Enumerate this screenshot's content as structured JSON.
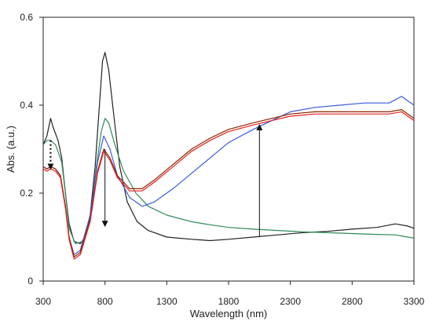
{
  "chart_data": {
    "type": "line",
    "title": "",
    "xlabel": "Wavelength (nm)",
    "ylabel": "Abs. (a.u.)",
    "xlim": [
      300,
      3300
    ],
    "ylim": [
      0,
      0.6
    ],
    "xticks": [
      300,
      800,
      1300,
      1800,
      2300,
      2800,
      3300
    ],
    "xtick_labels": [
      "300",
      "800",
      "1300",
      "1800",
      "2300",
      "2800",
      "3300"
    ],
    "yticks": [
      0,
      0.2,
      0.4,
      0.6
    ],
    "ytick_labels": [
      "0",
      "0.2",
      "0.4",
      "0.6"
    ],
    "grid": false,
    "legend": "none",
    "series": [
      {
        "color": "#222222",
        "points": [
          [
            300,
            0.31
          ],
          [
            330,
            0.33
          ],
          [
            360,
            0.37
          ],
          [
            380,
            0.35
          ],
          [
            420,
            0.32
          ],
          [
            450,
            0.28
          ],
          [
            480,
            0.2
          ],
          [
            510,
            0.13
          ],
          [
            550,
            0.09
          ],
          [
            600,
            0.085
          ],
          [
            640,
            0.1
          ],
          [
            680,
            0.15
          ],
          [
            720,
            0.26
          ],
          [
            750,
            0.38
          ],
          [
            780,
            0.5
          ],
          [
            800,
            0.52
          ],
          [
            830,
            0.48
          ],
          [
            870,
            0.38
          ],
          [
            920,
            0.26
          ],
          [
            980,
            0.18
          ],
          [
            1060,
            0.135
          ],
          [
            1150,
            0.115
          ],
          [
            1300,
            0.1
          ],
          [
            1500,
            0.095
          ],
          [
            1650,
            0.092
          ],
          [
            1800,
            0.095
          ],
          [
            2000,
            0.1
          ],
          [
            2200,
            0.105
          ],
          [
            2400,
            0.11
          ],
          [
            2600,
            0.113
          ],
          [
            2800,
            0.118
          ],
          [
            3000,
            0.122
          ],
          [
            3150,
            0.13
          ],
          [
            3250,
            0.125
          ],
          [
            3300,
            0.12
          ]
        ]
      },
      {
        "color": "#2e8b57",
        "points": [
          [
            300,
            0.31
          ],
          [
            330,
            0.32
          ],
          [
            360,
            0.32
          ],
          [
            400,
            0.31
          ],
          [
            450,
            0.27
          ],
          [
            480,
            0.2
          ],
          [
            510,
            0.12
          ],
          [
            560,
            0.085
          ],
          [
            620,
            0.09
          ],
          [
            680,
            0.14
          ],
          [
            730,
            0.26
          ],
          [
            770,
            0.34
          ],
          [
            800,
            0.37
          ],
          [
            830,
            0.36
          ],
          [
            880,
            0.31
          ],
          [
            950,
            0.25
          ],
          [
            1050,
            0.2
          ],
          [
            1150,
            0.17
          ],
          [
            1300,
            0.15
          ],
          [
            1500,
            0.135
          ],
          [
            1650,
            0.128
          ],
          [
            1800,
            0.122
          ],
          [
            2000,
            0.118
          ],
          [
            2200,
            0.115
          ],
          [
            2400,
            0.112
          ],
          [
            2600,
            0.11
          ],
          [
            2800,
            0.108
          ],
          [
            3000,
            0.106
          ],
          [
            3150,
            0.105
          ],
          [
            3250,
            0.1
          ],
          [
            3300,
            0.098
          ]
        ]
      },
      {
        "color": "#3b5bdb",
        "points": [
          [
            300,
            0.26
          ],
          [
            330,
            0.255
          ],
          [
            360,
            0.26
          ],
          [
            400,
            0.255
          ],
          [
            440,
            0.24
          ],
          [
            480,
            0.17
          ],
          [
            510,
            0.1
          ],
          [
            550,
            0.06
          ],
          [
            600,
            0.07
          ],
          [
            680,
            0.15
          ],
          [
            740,
            0.27
          ],
          [
            790,
            0.33
          ],
          [
            840,
            0.3
          ],
          [
            900,
            0.24
          ],
          [
            1000,
            0.19
          ],
          [
            1100,
            0.17
          ],
          [
            1200,
            0.18
          ],
          [
            1350,
            0.21
          ],
          [
            1500,
            0.245
          ],
          [
            1650,
            0.28
          ],
          [
            1800,
            0.315
          ],
          [
            2000,
            0.345
          ],
          [
            2150,
            0.365
          ],
          [
            2300,
            0.385
          ],
          [
            2500,
            0.395
          ],
          [
            2700,
            0.4
          ],
          [
            2900,
            0.405
          ],
          [
            3100,
            0.405
          ],
          [
            3200,
            0.42
          ],
          [
            3300,
            0.4
          ]
        ]
      },
      {
        "color": "#8b2500",
        "points": [
          [
            300,
            0.26
          ],
          [
            330,
            0.255
          ],
          [
            360,
            0.26
          ],
          [
            400,
            0.255
          ],
          [
            440,
            0.24
          ],
          [
            480,
            0.17
          ],
          [
            510,
            0.1
          ],
          [
            550,
            0.055
          ],
          [
            600,
            0.065
          ],
          [
            680,
            0.14
          ],
          [
            740,
            0.25
          ],
          [
            790,
            0.3
          ],
          [
            840,
            0.28
          ],
          [
            900,
            0.24
          ],
          [
            1000,
            0.21
          ],
          [
            1100,
            0.21
          ],
          [
            1200,
            0.23
          ],
          [
            1350,
            0.265
          ],
          [
            1500,
            0.3
          ],
          [
            1650,
            0.325
          ],
          [
            1800,
            0.345
          ],
          [
            2000,
            0.36
          ],
          [
            2150,
            0.37
          ],
          [
            2300,
            0.38
          ],
          [
            2500,
            0.385
          ],
          [
            2700,
            0.385
          ],
          [
            2900,
            0.385
          ],
          [
            3100,
            0.385
          ],
          [
            3200,
            0.39
          ],
          [
            3300,
            0.37
          ]
        ]
      },
      {
        "color": "#e61e1e",
        "points": [
          [
            300,
            0.255
          ],
          [
            330,
            0.25
          ],
          [
            360,
            0.255
          ],
          [
            400,
            0.25
          ],
          [
            440,
            0.235
          ],
          [
            480,
            0.165
          ],
          [
            510,
            0.095
          ],
          [
            550,
            0.05
          ],
          [
            600,
            0.06
          ],
          [
            680,
            0.135
          ],
          [
            740,
            0.245
          ],
          [
            790,
            0.295
          ],
          [
            840,
            0.275
          ],
          [
            900,
            0.235
          ],
          [
            1000,
            0.205
          ],
          [
            1100,
            0.205
          ],
          [
            1200,
            0.225
          ],
          [
            1350,
            0.26
          ],
          [
            1500,
            0.295
          ],
          [
            1650,
            0.32
          ],
          [
            1800,
            0.34
          ],
          [
            2000,
            0.355
          ],
          [
            2150,
            0.365
          ],
          [
            2300,
            0.375
          ],
          [
            2500,
            0.38
          ],
          [
            2700,
            0.38
          ],
          [
            2900,
            0.38
          ],
          [
            3100,
            0.38
          ],
          [
            3200,
            0.385
          ],
          [
            3300,
            0.365
          ]
        ]
      }
    ],
    "annotations": [
      {
        "type": "arrow",
        "style": "dotted",
        "x": 360,
        "from_y": 0.32,
        "to_y": 0.26
      },
      {
        "type": "arrow",
        "style": "solid",
        "x": 800,
        "from_y": 0.3,
        "to_y": 0.13
      },
      {
        "type": "arrow",
        "style": "solid",
        "x": 2050,
        "from_y": 0.1,
        "to_y": 0.35
      }
    ]
  }
}
